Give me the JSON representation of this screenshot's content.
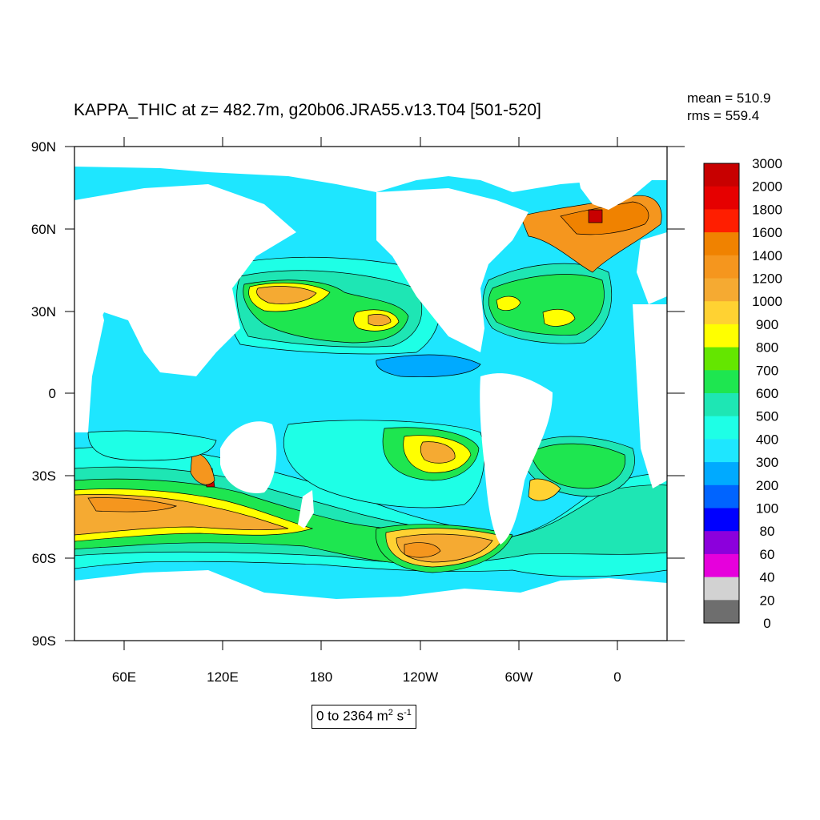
{
  "title": "KAPPA_THIC at z= 482.7m, g20b06.JRA55.v13.T04 [501-520]",
  "stats": {
    "mean": "mean = 510.9",
    "rms": "rms = 559.4"
  },
  "units": {
    "range": "0 to 2364 m",
    "sq": "2",
    "s": " s",
    "inv": "-1"
  },
  "map": {
    "lat_labels": [
      "90N",
      "60N",
      "30N",
      "0",
      "30S",
      "60S",
      "90S"
    ],
    "lon_labels": [
      "60E",
      "120E",
      "180",
      "120W",
      "60W",
      "0"
    ],
    "ocean_color": "#1ee6ff",
    "land_color": "#ffffff"
  },
  "colorbar": {
    "levels": [
      "3000",
      "2000",
      "1800",
      "1600",
      "1400",
      "1200",
      "1000",
      "900",
      "800",
      "700",
      "600",
      "500",
      "400",
      "300",
      "200",
      "100",
      "80",
      "60",
      "40",
      "20",
      "0"
    ],
    "colors": [
      "#c80000",
      "#e60000",
      "#ff1e00",
      "#f08200",
      "#f5961e",
      "#f5aa32",
      "#ffd232",
      "#ffff00",
      "#64e600",
      "#1ee650",
      "#1ee6b4",
      "#1effe6",
      "#1ee6ff",
      "#00aaff",
      "#0064ff",
      "#0000ff",
      "#8c00dc",
      "#e600dc",
      "#d2d2d2",
      "#6e6e6e"
    ]
  }
}
